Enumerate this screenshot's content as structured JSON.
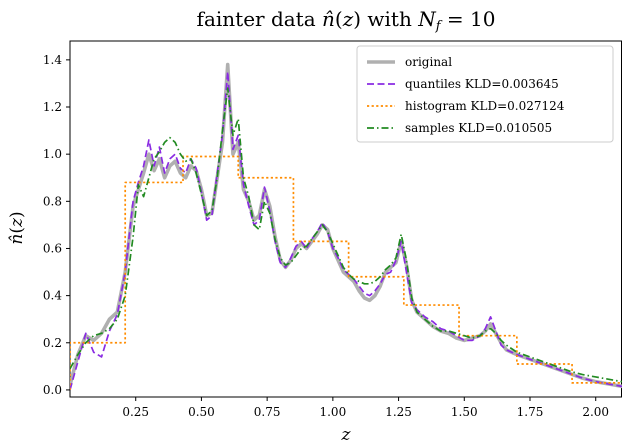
{
  "chart_data": {
    "type": "line",
    "title": "fainter data n̂(z) with N_f = 10",
    "xlabel": "z",
    "ylabel": "n̂(z)",
    "xlim": [
      0.0,
      2.1
    ],
    "ylim": [
      -0.03,
      1.48
    ],
    "xticks": [
      0.25,
      0.5,
      0.75,
      1.0,
      1.25,
      1.5,
      1.75,
      2.0
    ],
    "xtick_labels": [
      "0.25",
      "0.50",
      "0.75",
      "1.00",
      "1.25",
      "1.50",
      "1.75",
      "2.00"
    ],
    "yticks": [
      0.0,
      0.2,
      0.4,
      0.6,
      0.8,
      1.0,
      1.2,
      1.4
    ],
    "ytick_labels": [
      "0.0",
      "0.2",
      "0.4",
      "0.6",
      "0.8",
      "1.0",
      "1.2",
      "1.4"
    ],
    "grid": false,
    "legend_position": "top-right",
    "series": [
      {
        "name": "original",
        "color": "#b0b0b0",
        "style": "solid",
        "x": [
          0.0,
          0.03,
          0.06,
          0.09,
          0.12,
          0.15,
          0.18,
          0.21,
          0.24,
          0.26,
          0.28,
          0.3,
          0.32,
          0.34,
          0.36,
          0.38,
          0.4,
          0.42,
          0.44,
          0.46,
          0.48,
          0.5,
          0.52,
          0.54,
          0.56,
          0.58,
          0.6,
          0.62,
          0.64,
          0.66,
          0.68,
          0.7,
          0.72,
          0.74,
          0.76,
          0.78,
          0.8,
          0.82,
          0.84,
          0.86,
          0.88,
          0.9,
          0.92,
          0.94,
          0.96,
          0.98,
          1.0,
          1.02,
          1.04,
          1.06,
          1.08,
          1.1,
          1.12,
          1.14,
          1.16,
          1.18,
          1.2,
          1.22,
          1.24,
          1.26,
          1.28,
          1.3,
          1.32,
          1.35,
          1.38,
          1.41,
          1.44,
          1.47,
          1.5,
          1.53,
          1.56,
          1.58,
          1.6,
          1.62,
          1.64,
          1.66,
          1.7,
          1.75,
          1.8,
          1.85,
          1.9,
          1.95,
          2.0,
          2.05,
          2.1
        ],
        "y": [
          0.02,
          0.15,
          0.23,
          0.21,
          0.24,
          0.3,
          0.33,
          0.5,
          0.78,
          0.85,
          0.92,
          1.0,
          0.93,
          0.98,
          0.9,
          0.95,
          0.97,
          0.92,
          0.9,
          0.95,
          0.93,
          0.85,
          0.74,
          0.75,
          0.9,
          1.05,
          1.38,
          1.0,
          1.05,
          0.85,
          0.8,
          0.72,
          0.74,
          0.85,
          0.78,
          0.65,
          0.55,
          0.52,
          0.55,
          0.6,
          0.62,
          0.6,
          0.63,
          0.66,
          0.7,
          0.68,
          0.6,
          0.55,
          0.5,
          0.48,
          0.46,
          0.42,
          0.39,
          0.38,
          0.4,
          0.44,
          0.5,
          0.52,
          0.54,
          0.63,
          0.53,
          0.38,
          0.33,
          0.3,
          0.27,
          0.25,
          0.24,
          0.22,
          0.21,
          0.22,
          0.23,
          0.25,
          0.28,
          0.24,
          0.2,
          0.17,
          0.15,
          0.13,
          0.11,
          0.09,
          0.07,
          0.05,
          0.035,
          0.025,
          0.015
        ]
      },
      {
        "name": "quantiles KLD=0.003645",
        "color": "#8a2be2",
        "style": "dashed",
        "x": [
          0.0,
          0.03,
          0.06,
          0.09,
          0.12,
          0.15,
          0.18,
          0.21,
          0.24,
          0.26,
          0.28,
          0.3,
          0.32,
          0.34,
          0.36,
          0.38,
          0.4,
          0.42,
          0.44,
          0.46,
          0.48,
          0.5,
          0.52,
          0.54,
          0.56,
          0.58,
          0.6,
          0.62,
          0.64,
          0.66,
          0.68,
          0.7,
          0.72,
          0.74,
          0.76,
          0.78,
          0.8,
          0.82,
          0.84,
          0.86,
          0.88,
          0.9,
          0.92,
          0.94,
          0.96,
          0.98,
          1.0,
          1.02,
          1.04,
          1.06,
          1.08,
          1.1,
          1.12,
          1.14,
          1.16,
          1.18,
          1.2,
          1.22,
          1.24,
          1.26,
          1.28,
          1.3,
          1.32,
          1.35,
          1.38,
          1.41,
          1.44,
          1.47,
          1.5,
          1.53,
          1.56,
          1.58,
          1.6,
          1.62,
          1.64,
          1.66,
          1.7,
          1.75,
          1.8,
          1.85,
          1.9,
          1.95,
          2.0,
          2.05,
          2.1
        ],
        "y": [
          0.0,
          0.12,
          0.24,
          0.16,
          0.14,
          0.25,
          0.32,
          0.5,
          0.8,
          0.88,
          0.95,
          1.06,
          0.95,
          1.03,
          0.92,
          0.98,
          1.0,
          0.94,
          0.92,
          0.98,
          0.94,
          0.84,
          0.72,
          0.74,
          0.92,
          1.08,
          1.35,
          1.02,
          1.08,
          0.87,
          0.78,
          0.7,
          0.72,
          0.86,
          0.76,
          0.63,
          0.54,
          0.52,
          0.56,
          0.61,
          0.63,
          0.6,
          0.64,
          0.67,
          0.71,
          0.67,
          0.6,
          0.56,
          0.51,
          0.49,
          0.47,
          0.44,
          0.41,
          0.4,
          0.42,
          0.45,
          0.49,
          0.5,
          0.55,
          0.63,
          0.5,
          0.37,
          0.34,
          0.31,
          0.29,
          0.26,
          0.25,
          0.23,
          0.21,
          0.21,
          0.23,
          0.26,
          0.31,
          0.25,
          0.19,
          0.17,
          0.15,
          0.13,
          0.11,
          0.09,
          0.07,
          0.05,
          0.035,
          0.025,
          0.015
        ]
      },
      {
        "name": "histogram KLD=0.027124",
        "color": "#ff8c00",
        "style": "dotted",
        "step": true,
        "edges": [
          0.0,
          0.21,
          0.43,
          0.64,
          0.85,
          1.06,
          1.27,
          1.48,
          1.7,
          1.91,
          2.1
        ],
        "values": [
          0.2,
          0.88,
          0.99,
          0.9,
          0.63,
          0.48,
          0.36,
          0.23,
          0.11,
          0.03
        ]
      },
      {
        "name": "samples KLD=0.010505",
        "color": "#228b22",
        "style": "dashdot",
        "x": [
          0.0,
          0.03,
          0.06,
          0.09,
          0.12,
          0.15,
          0.18,
          0.21,
          0.24,
          0.26,
          0.28,
          0.3,
          0.32,
          0.34,
          0.36,
          0.38,
          0.4,
          0.42,
          0.44,
          0.46,
          0.48,
          0.5,
          0.52,
          0.54,
          0.56,
          0.58,
          0.6,
          0.62,
          0.64,
          0.66,
          0.68,
          0.7,
          0.72,
          0.74,
          0.76,
          0.78,
          0.8,
          0.82,
          0.84,
          0.86,
          0.88,
          0.9,
          0.92,
          0.94,
          0.96,
          0.98,
          1.0,
          1.02,
          1.04,
          1.06,
          1.08,
          1.1,
          1.12,
          1.14,
          1.16,
          1.18,
          1.2,
          1.22,
          1.24,
          1.26,
          1.28,
          1.3,
          1.32,
          1.35,
          1.38,
          1.41,
          1.44,
          1.47,
          1.5,
          1.53,
          1.56,
          1.58,
          1.6,
          1.62,
          1.64,
          1.66,
          1.7,
          1.75,
          1.8,
          1.85,
          1.9,
          1.95,
          2.0,
          2.05,
          2.1
        ],
        "y": [
          0.09,
          0.15,
          0.2,
          0.23,
          0.24,
          0.26,
          0.3,
          0.4,
          0.65,
          0.87,
          0.82,
          0.9,
          0.98,
          1.01,
          1.05,
          1.07,
          1.05,
          1.0,
          0.97,
          0.98,
          0.92,
          0.83,
          0.74,
          0.76,
          0.9,
          1.1,
          1.28,
          1.08,
          1.15,
          0.9,
          0.82,
          0.7,
          0.68,
          0.8,
          0.75,
          0.64,
          0.56,
          0.53,
          0.54,
          0.57,
          0.6,
          0.61,
          0.64,
          0.67,
          0.7,
          0.67,
          0.62,
          0.57,
          0.52,
          0.49,
          0.47,
          0.46,
          0.45,
          0.45,
          0.46,
          0.48,
          0.51,
          0.53,
          0.56,
          0.66,
          0.55,
          0.39,
          0.33,
          0.3,
          0.27,
          0.25,
          0.25,
          0.24,
          0.23,
          0.22,
          0.23,
          0.25,
          0.26,
          0.24,
          0.21,
          0.19,
          0.16,
          0.14,
          0.12,
          0.1,
          0.08,
          0.065,
          0.055,
          0.045,
          0.035
        ]
      }
    ]
  }
}
